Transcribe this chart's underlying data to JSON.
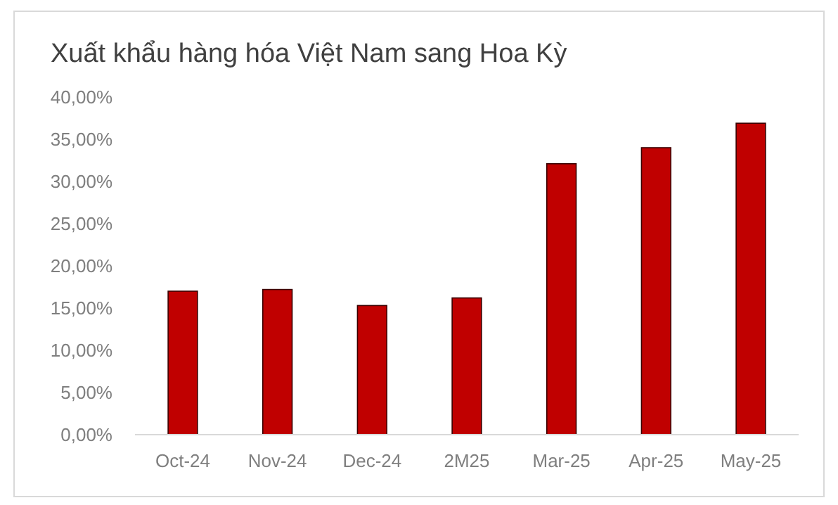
{
  "chart_data": {
    "type": "bar",
    "title": "Xuất khẩu hàng hóa Việt Nam sang Hoa Kỳ",
    "categories": [
      "Oct-24",
      "Nov-24",
      "Dec-24",
      "2M25",
      "Mar-25",
      "Apr-25",
      "May-25"
    ],
    "values": [
      17.0,
      17.2,
      15.3,
      16.2,
      32.1,
      34.0,
      36.9
    ],
    "color": "#c00000",
    "ylim": [
      0,
      40
    ],
    "yticks": [
      {
        "value": 0,
        "label": "0,00%"
      },
      {
        "value": 5,
        "label": "5,00%"
      },
      {
        "value": 10,
        "label": "10,00%"
      },
      {
        "value": 15,
        "label": "15,00%"
      },
      {
        "value": 20,
        "label": "20,00%"
      },
      {
        "value": 25,
        "label": "25,00%"
      },
      {
        "value": 30,
        "label": "30,00%"
      },
      {
        "value": 35,
        "label": "35,00%"
      },
      {
        "value": 40,
        "label": "40,00%"
      }
    ],
    "grid": false
  }
}
